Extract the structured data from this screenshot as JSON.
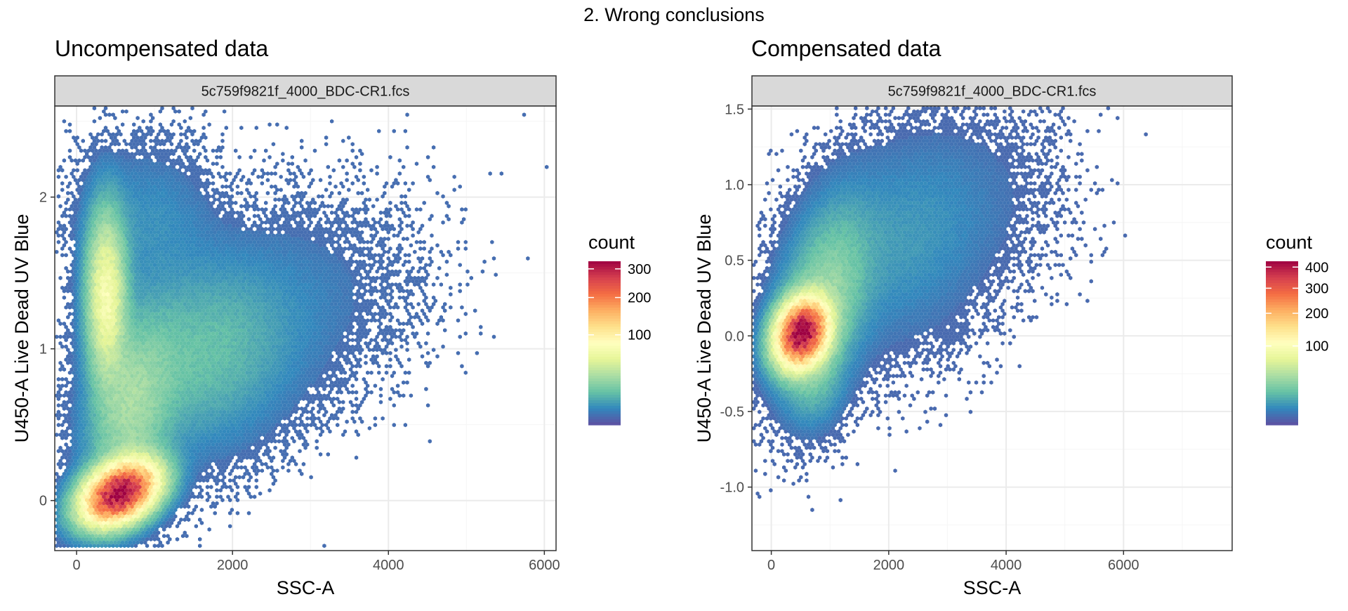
{
  "figure_title": "2. Wrong conclusions",
  "colors": {
    "panel_border": "#333333",
    "strip_fill": "#d9d9d9",
    "grid_major": "#ebebeb",
    "grid_minor": "#f5f5f5",
    "palette_spectral": [
      "#5E4FA2",
      "#3288BD",
      "#66C2A5",
      "#ABDDA4",
      "#E6F598",
      "#FFFFBF",
      "#FEE08B",
      "#FDAE61",
      "#F46D43",
      "#D53E4F",
      "#9E0142"
    ]
  },
  "chart_data": [
    {
      "type": "heatmap",
      "subtype": "hexbin",
      "title": "Uncompensated data",
      "facet_label": "5c759f9821f_4000_BDC-CR1.fcs",
      "xlabel": "SSC-A",
      "ylabel": "U450-A Live Dead UV Blue",
      "xlim": [
        -280,
        6150
      ],
      "ylim": [
        -0.33,
        2.6
      ],
      "x_ticks": [
        0,
        2000,
        4000,
        6000
      ],
      "x_tick_labels": [
        "0",
        "2000",
        "4000",
        "6000"
      ],
      "y_ticks": [
        0,
        1,
        2
      ],
      "y_tick_labels": [
        "0",
        "1",
        "2"
      ],
      "grid": true,
      "legend": {
        "title": "count",
        "position": "right",
        "scale": "sqrt",
        "max": 330,
        "breaks": [
          100,
          200,
          300
        ],
        "break_labels": [
          "100",
          "200",
          "300"
        ]
      },
      "clusters": [
        {
          "cx": 560,
          "cy": 0.05,
          "sx": 280,
          "sy": 0.12,
          "rho": 0.35,
          "peak": 330
        },
        {
          "cx": 380,
          "cy": 1.35,
          "sx": 150,
          "sy": 0.32,
          "rho": 0.0,
          "peak": 70
        },
        {
          "cx": 1600,
          "cy": 0.95,
          "sx": 650,
          "sy": 0.35,
          "rho": 0.15,
          "peak": 12
        },
        {
          "cx": 700,
          "cy": 0.6,
          "sx": 320,
          "sy": 0.35,
          "rho": 0.3,
          "peak": 25
        },
        {
          "cx": 2700,
          "cy": 1.3,
          "sx": 900,
          "sy": 0.4,
          "rho": 0.2,
          "peak": 2.2
        },
        {
          "cx": 900,
          "cy": 1.85,
          "sx": 500,
          "sy": 0.28,
          "rho": 0.0,
          "peak": 4
        }
      ]
    },
    {
      "type": "heatmap",
      "subtype": "hexbin",
      "title": "Compensated data",
      "facet_label": "5c759f9821f_4000_BDC-CR1.fcs",
      "xlabel": "SSC-A",
      "ylabel": "U450-A Live Dead UV Blue",
      "xlim": [
        -330,
        7850
      ],
      "ylim": [
        -1.42,
        1.52
      ],
      "x_ticks": [
        0,
        2000,
        4000,
        6000
      ],
      "x_tick_labels": [
        "0",
        "2000",
        "4000",
        "6000"
      ],
      "y_ticks": [
        -1.0,
        -0.5,
        0.0,
        0.5,
        1.0,
        1.5
      ],
      "y_tick_labels": [
        "-1.0",
        "-0.5",
        "0.0",
        "0.5",
        "1.0",
        "1.5"
      ],
      "grid": true,
      "legend": {
        "title": "count",
        "position": "right",
        "scale": "sqrt",
        "max": 430,
        "breaks": [
          100,
          200,
          300,
          400
        ],
        "break_labels": [
          "100",
          "200",
          "300",
          "400"
        ]
      },
      "clusters": [
        {
          "cx": 520,
          "cy": 0.02,
          "sx": 260,
          "sy": 0.13,
          "rho": 0.2,
          "peak": 430
        },
        {
          "cx": 900,
          "cy": 0.25,
          "sx": 450,
          "sy": 0.35,
          "rho": 0.35,
          "peak": 30
        },
        {
          "cx": 2200,
          "cy": 0.6,
          "sx": 800,
          "sy": 0.38,
          "rho": 0.15,
          "peak": 6
        },
        {
          "cx": 3300,
          "cy": 0.9,
          "sx": 900,
          "sy": 0.35,
          "rho": 0.1,
          "peak": 1.8
        },
        {
          "cx": 700,
          "cy": -0.25,
          "sx": 280,
          "sy": 0.18,
          "rho": 0.0,
          "peak": 14
        }
      ]
    }
  ]
}
